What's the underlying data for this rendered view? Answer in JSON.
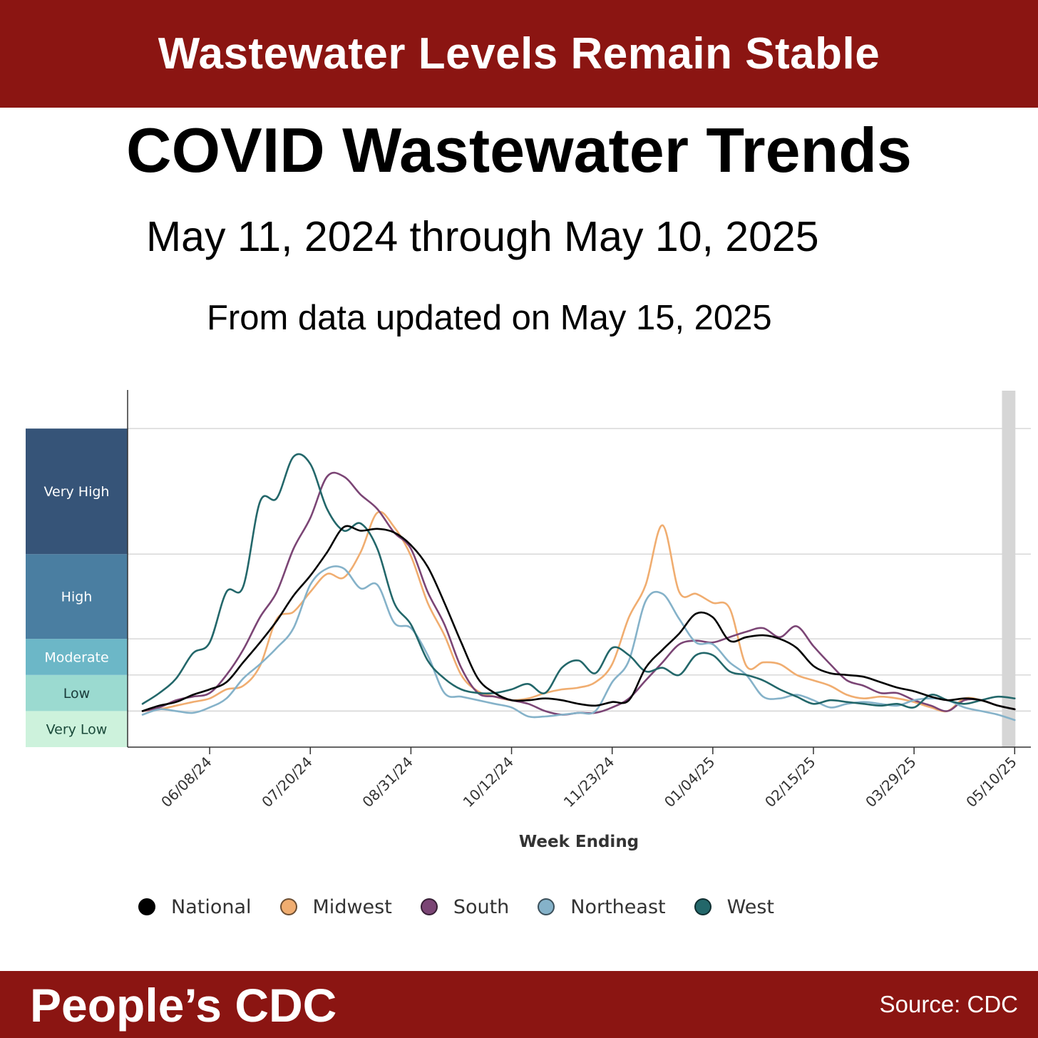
{
  "header": {
    "banner": "Wastewater Levels Remain Stable",
    "title": "COVID Wastewater Trends",
    "date_range": "May 11, 2024 through May 10, 2025",
    "updated": "From data updated on May 15, 2025"
  },
  "footer": {
    "brand": "People’s CDC",
    "source": "Source: CDC"
  },
  "chart_data": {
    "type": "line",
    "xlabel": "Week Ending",
    "ylabel": "",
    "x_tick_labels": [
      "06/08/24",
      "07/20/24",
      "08/31/24",
      "10/12/24",
      "11/23/24",
      "01/04/25",
      "02/15/25",
      "03/29/25",
      "05/10/25"
    ],
    "x_tick_weeks": [
      4,
      10,
      16,
      22,
      28,
      34,
      40,
      46,
      52
    ],
    "x_range_weeks": [
      0,
      52.2
    ],
    "y_range": [
      -1,
      8.9
    ],
    "grid": "horizontal lines at level boundaries",
    "level_bands": [
      {
        "label": "Very Low",
        "from": -1,
        "to": 0,
        "color": "#cdf2dc",
        "text_color": "#1a4a3a"
      },
      {
        "label": "Low",
        "from": 0,
        "to": 1,
        "color": "#9bdad0",
        "text_color": "#1a3a3a"
      },
      {
        "label": "Moderate",
        "from": 1,
        "to": 2,
        "color": "#6cb7c7",
        "text_color": "#ffffff"
      },
      {
        "label": "High",
        "from": 2,
        "to": 4.35,
        "color": "#4a7ea1",
        "text_color": "#ffffff"
      },
      {
        "label": "Very High",
        "from": 4.35,
        "to": 7.83,
        "color": "#365478",
        "text_color": "#ffffff"
      }
    ],
    "provisional_week_range": [
      51.2,
      52.0
    ],
    "legend_position": "bottom",
    "x_weeks": [
      0,
      1,
      2,
      3,
      4,
      5,
      6,
      7,
      8,
      9,
      10,
      11,
      12,
      13,
      14,
      15,
      16,
      17,
      18,
      19,
      20,
      21,
      22,
      23,
      24,
      25,
      26,
      27,
      28,
      29,
      30,
      31,
      32,
      33,
      34,
      35,
      36,
      37,
      38,
      39,
      40,
      41,
      42,
      43,
      44,
      45,
      46,
      47,
      48,
      49,
      50,
      51,
      52
    ],
    "series": [
      {
        "name": "National",
        "color": "#000000",
        "values": [
          0.0,
          0.15,
          0.25,
          0.45,
          0.6,
          0.8,
          1.35,
          1.9,
          2.5,
          3.2,
          3.75,
          4.4,
          5.1,
          5.0,
          5.05,
          4.95,
          4.6,
          4.0,
          3.0,
          1.9,
          0.9,
          0.5,
          0.3,
          0.3,
          0.35,
          0.3,
          0.2,
          0.15,
          0.25,
          0.3,
          1.2,
          1.7,
          2.15,
          2.7,
          2.6,
          1.95,
          2.05,
          2.1,
          2.0,
          1.75,
          1.25,
          1.05,
          1.0,
          0.95,
          0.8,
          0.65,
          0.55,
          0.4,
          0.3,
          0.35,
          0.3,
          0.15,
          0.05
        ]
      },
      {
        "name": "Midwest",
        "color": "#f0ad70",
        "values": [
          0.0,
          0.05,
          0.15,
          0.25,
          0.35,
          0.6,
          0.7,
          1.25,
          2.55,
          2.75,
          3.3,
          3.8,
          3.7,
          4.4,
          5.5,
          5.1,
          4.3,
          3.0,
          2.1,
          1.0,
          0.55,
          0.4,
          0.3,
          0.35,
          0.5,
          0.6,
          0.65,
          0.8,
          1.3,
          2.6,
          3.5,
          5.15,
          3.3,
          3.25,
          3.0,
          2.85,
          1.25,
          1.35,
          1.3,
          1.0,
          0.85,
          0.7,
          0.45,
          0.35,
          0.4,
          0.35,
          0.25,
          0.1,
          0.0,
          0.35,
          0.3,
          0.15,
          0.05
        ]
      },
      {
        "name": "South",
        "color": "#7b4575",
        "values": [
          0.0,
          0.1,
          0.3,
          0.4,
          0.5,
          1.0,
          1.7,
          2.6,
          3.3,
          4.5,
          5.35,
          6.5,
          6.5,
          6.0,
          5.6,
          4.95,
          4.5,
          3.3,
          2.4,
          1.2,
          0.5,
          0.4,
          0.3,
          0.2,
          0.0,
          -0.1,
          -0.05,
          -0.05,
          0.1,
          0.35,
          0.85,
          1.35,
          1.85,
          1.95,
          1.9,
          2.05,
          2.2,
          2.3,
          2.05,
          2.35,
          1.8,
          1.3,
          0.85,
          0.7,
          0.5,
          0.5,
          0.3,
          0.15,
          0.0,
          0.3,
          0.3,
          0.15,
          0.05
        ]
      },
      {
        "name": "Northeast",
        "color": "#85b2c9",
        "values": [
          -0.1,
          0.05,
          0.0,
          -0.05,
          0.1,
          0.35,
          0.9,
          1.3,
          1.75,
          2.3,
          3.5,
          3.95,
          3.95,
          3.4,
          3.5,
          2.45,
          2.3,
          1.55,
          0.5,
          0.4,
          0.3,
          0.2,
          0.1,
          -0.15,
          -0.15,
          -0.1,
          -0.05,
          0.0,
          0.8,
          1.4,
          3.05,
          3.25,
          2.55,
          1.9,
          1.85,
          1.35,
          1.0,
          0.4,
          0.35,
          0.45,
          0.3,
          0.1,
          0.2,
          0.25,
          0.2,
          0.15,
          0.3,
          0.35,
          0.3,
          0.1,
          0.0,
          -0.1,
          -0.25
        ]
      },
      {
        "name": "West",
        "color": "#23676a",
        "values": [
          0.2,
          0.5,
          0.9,
          1.6,
          1.9,
          3.3,
          3.45,
          5.8,
          5.9,
          7.05,
          6.85,
          5.6,
          5.0,
          5.2,
          4.5,
          3.0,
          2.4,
          1.4,
          0.9,
          0.6,
          0.5,
          0.5,
          0.6,
          0.75,
          0.5,
          1.2,
          1.4,
          1.05,
          1.75,
          1.55,
          1.1,
          1.2,
          1.0,
          1.55,
          1.55,
          1.1,
          1.0,
          0.85,
          0.6,
          0.4,
          0.2,
          0.3,
          0.25,
          0.2,
          0.15,
          0.2,
          0.1,
          0.45,
          0.3,
          0.2,
          0.3,
          0.4,
          0.35
        ]
      }
    ]
  }
}
